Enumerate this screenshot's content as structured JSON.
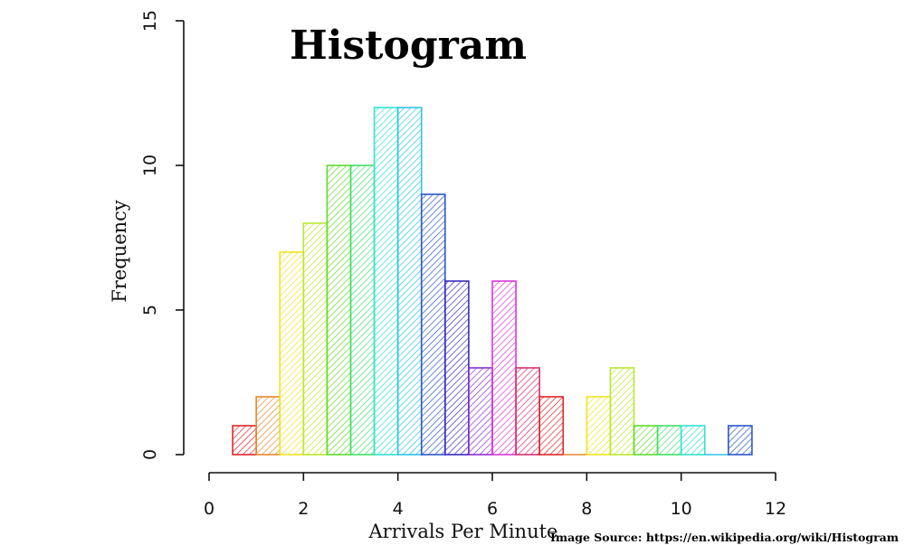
{
  "chart_data": {
    "type": "bar",
    "title": "Histogram",
    "xlabel": "Arrivals Per Minute",
    "ylabel": "Frequency",
    "xlim": [
      0,
      12
    ],
    "ylim": [
      0,
      15
    ],
    "xticks": [
      0,
      2,
      4,
      6,
      8,
      10,
      12
    ],
    "yticks": [
      0,
      5,
      10,
      15
    ],
    "bin_width": 0.5,
    "bins": [
      {
        "start": 0.5,
        "count": 1,
        "color": "#e0262b"
      },
      {
        "start": 1.0,
        "count": 2,
        "color": "#e8892e"
      },
      {
        "start": 1.5,
        "count": 7,
        "color": "#f0e224"
      },
      {
        "start": 2.0,
        "count": 8,
        "color": "#b9e82f"
      },
      {
        "start": 2.5,
        "count": 10,
        "color": "#5fdc2c"
      },
      {
        "start": 3.0,
        "count": 10,
        "color": "#43e06a"
      },
      {
        "start": 3.5,
        "count": 12,
        "color": "#33e3cf"
      },
      {
        "start": 4.0,
        "count": 12,
        "color": "#2ec4e6"
      },
      {
        "start": 4.5,
        "count": 9,
        "color": "#2d58c8"
      },
      {
        "start": 5.0,
        "count": 6,
        "color": "#3a2cc0"
      },
      {
        "start": 5.5,
        "count": 3,
        "color": "#8e2fd4"
      },
      {
        "start": 6.0,
        "count": 6,
        "color": "#d83ad6"
      },
      {
        "start": 6.5,
        "count": 3,
        "color": "#d8316e"
      },
      {
        "start": 7.0,
        "count": 2,
        "color": "#e0262b"
      },
      {
        "start": 7.5,
        "count": 0,
        "color": "#e8892e"
      },
      {
        "start": 8.0,
        "count": 2,
        "color": "#f0e224"
      },
      {
        "start": 8.5,
        "count": 3,
        "color": "#b9e82f"
      },
      {
        "start": 9.0,
        "count": 1,
        "color": "#5fdc2c"
      },
      {
        "start": 9.5,
        "count": 1,
        "color": "#43e06a"
      },
      {
        "start": 10.0,
        "count": 1,
        "color": "#33e3cf"
      },
      {
        "start": 10.5,
        "count": 0,
        "color": "#2ec4e6"
      },
      {
        "start": 11.0,
        "count": 1,
        "color": "#2d58c8"
      }
    ],
    "fill_style": "diagonal-hatch",
    "grid": false,
    "legend": "none"
  },
  "source_note": "Image Source: https://en.wikipedia.org/wiki/Histogram"
}
